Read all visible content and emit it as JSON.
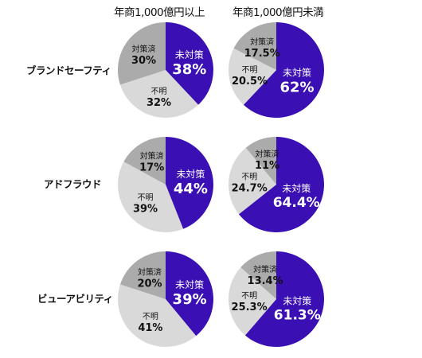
{
  "columns": [
    "年商1,000億円以上",
    "年商1,000億円未満"
  ],
  "rows": [
    "ブランドセーフティ",
    "アドフラウド",
    "ビューアビリティ"
  ],
  "colors": {
    "unmitigated": "#3a0fb3",
    "unknown": "#d9d9d9",
    "mitigated": "#ababab"
  },
  "chart_data": [
    {
      "type": "pie",
      "row": "ブランドセーフティ",
      "column": "年商1,000億円以上",
      "slices": [
        {
          "label": "未対策",
          "value": 38,
          "text": "38%"
        },
        {
          "label": "不明",
          "value": 32,
          "text": "32%"
        },
        {
          "label": "対策済",
          "value": 30,
          "text": "30%"
        }
      ]
    },
    {
      "type": "pie",
      "row": "ブランドセーフティ",
      "column": "年商1,000億円未満",
      "slices": [
        {
          "label": "未対策",
          "value": 62,
          "text": "62%"
        },
        {
          "label": "不明",
          "value": 20.5,
          "text": "20.5%"
        },
        {
          "label": "対策済",
          "value": 17.5,
          "text": "17.5%"
        }
      ]
    },
    {
      "type": "pie",
      "row": "アドフラウド",
      "column": "年商1,000億円以上",
      "slices": [
        {
          "label": "未対策",
          "value": 44,
          "text": "44%"
        },
        {
          "label": "不明",
          "value": 39,
          "text": "39%"
        },
        {
          "label": "対策済",
          "value": 17,
          "text": "17%"
        }
      ]
    },
    {
      "type": "pie",
      "row": "アドフラウド",
      "column": "年商1,000億円未満",
      "slices": [
        {
          "label": "未対策",
          "value": 64.4,
          "text": "64.4%"
        },
        {
          "label": "不明",
          "value": 24.7,
          "text": "24.7%"
        },
        {
          "label": "対策済",
          "value": 11,
          "text": "11%"
        }
      ]
    },
    {
      "type": "pie",
      "row": "ビューアビリティ",
      "column": "年商1,000億円以上",
      "slices": [
        {
          "label": "未対策",
          "value": 39,
          "text": "39%"
        },
        {
          "label": "不明",
          "value": 41,
          "text": "41%"
        },
        {
          "label": "対策済",
          "value": 20,
          "text": "20%"
        }
      ]
    },
    {
      "type": "pie",
      "row": "ビューアビリティ",
      "column": "年商1,000億円未満",
      "slices": [
        {
          "label": "未対策",
          "value": 61.3,
          "text": "61.3%"
        },
        {
          "label": "不明",
          "value": 25.3,
          "text": "25.3%"
        },
        {
          "label": "対策済",
          "value": 13.4,
          "text": "13.4%"
        }
      ]
    }
  ]
}
